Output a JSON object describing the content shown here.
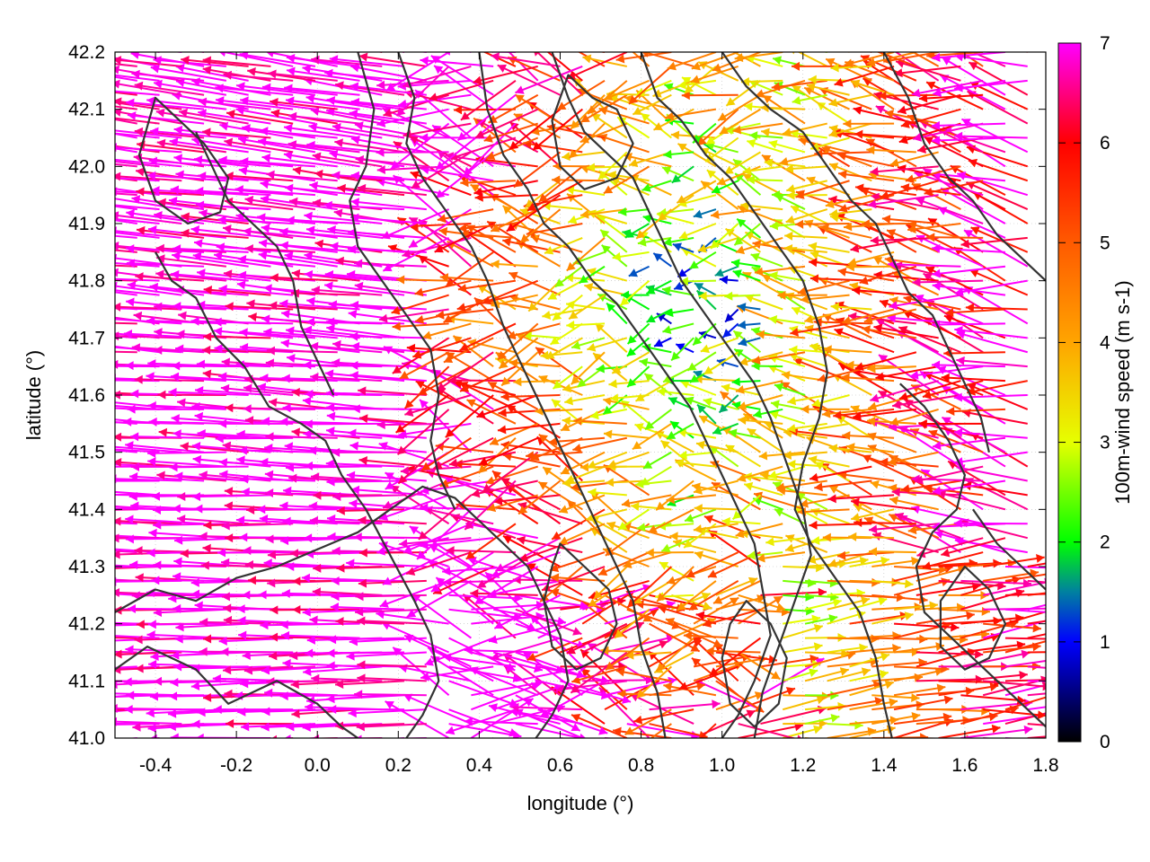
{
  "chart_data": {
    "type": "vector-field",
    "title": "",
    "xlabel": "longitude (°)",
    "ylabel": "latitude (°)",
    "colorbar_label": "100m-wind speed (m s-1)",
    "xlim": [
      -0.5,
      1.8
    ],
    "ylim": [
      41.0,
      42.2
    ],
    "x_ticks": [
      -0.4,
      -0.2,
      0.0,
      0.2,
      0.4,
      0.6,
      0.8,
      1.0,
      1.2,
      1.4,
      1.6,
      1.8
    ],
    "x_tick_labels": [
      "-0.4",
      "-0.2",
      "0.0",
      "0.2",
      "0.4",
      "0.6",
      "0.8",
      "1.0",
      "1.2",
      "1.4",
      "1.6",
      "1.8"
    ],
    "y_ticks": [
      41.0,
      41.1,
      41.2,
      41.3,
      41.4,
      41.5,
      41.6,
      41.7,
      41.8,
      41.9,
      42.0,
      42.1,
      42.2
    ],
    "y_tick_labels": [
      "41.0",
      "41.1",
      "41.2",
      "41.3",
      "41.4",
      "41.5",
      "41.6",
      "41.7",
      "41.8",
      "41.9",
      "42.0",
      "42.1",
      "42.2"
    ],
    "colorbar_range": [
      0,
      7
    ],
    "colorbar_ticks": [
      0,
      1,
      2,
      3,
      4,
      5,
      6,
      7
    ],
    "colorbar_tick_labels": [
      "0",
      "1",
      "2",
      "3",
      "4",
      "5",
      "6",
      "7"
    ],
    "colormap": [
      {
        "value": 0,
        "color": "#000000"
      },
      {
        "value": 1,
        "color": "#0000ff"
      },
      {
        "value": 1.5,
        "color": "#0080a0"
      },
      {
        "value": 2,
        "color": "#00ff00"
      },
      {
        "value": 3,
        "color": "#e6ff00"
      },
      {
        "value": 4,
        "color": "#ffa500"
      },
      {
        "value": 5,
        "color": "#ff5a00"
      },
      {
        "value": 6,
        "color": "#ff0000"
      },
      {
        "value": 7,
        "color": "#ff00ff"
      }
    ],
    "grid": true,
    "legend": "colorbar-right",
    "contour_color": "#333333",
    "contours": [
      [
        [
          -0.4,
          41.85
        ],
        [
          -0.36,
          41.8
        ],
        [
          -0.3,
          41.77
        ],
        [
          -0.25,
          41.7
        ],
        [
          -0.18,
          41.65
        ],
        [
          -0.12,
          41.58
        ],
        [
          -0.04,
          41.55
        ],
        [
          0.02,
          41.52
        ],
        [
          0.06,
          41.46
        ],
        [
          0.12,
          41.4
        ],
        [
          0.18,
          41.32
        ],
        [
          0.24,
          41.24
        ],
        [
          0.28,
          41.18
        ],
        [
          0.3,
          41.1
        ],
        [
          0.26,
          41.04
        ],
        [
          0.22,
          41.0
        ]
      ],
      [
        [
          -0.5,
          41.22
        ],
        [
          -0.4,
          41.26
        ],
        [
          -0.3,
          41.24
        ],
        [
          -0.2,
          41.28
        ],
        [
          -0.1,
          41.3
        ],
        [
          0.0,
          41.33
        ],
        [
          0.1,
          41.36
        ],
        [
          0.18,
          41.4
        ],
        [
          0.26,
          41.44
        ],
        [
          0.34,
          41.42
        ],
        [
          0.4,
          41.38
        ],
        [
          0.46,
          41.34
        ],
        [
          0.52,
          41.3
        ],
        [
          0.56,
          41.24
        ],
        [
          0.6,
          41.18
        ],
        [
          0.62,
          41.1
        ],
        [
          0.58,
          41.04
        ],
        [
          0.54,
          41.0
        ]
      ],
      [
        [
          -0.5,
          41.12
        ],
        [
          -0.42,
          41.16
        ],
        [
          -0.3,
          41.12
        ],
        [
          -0.22,
          41.06
        ],
        [
          -0.1,
          41.1
        ],
        [
          0.0,
          41.06
        ],
        [
          0.06,
          41.02
        ],
        [
          0.1,
          41.0
        ]
      ],
      [
        [
          0.1,
          42.2
        ],
        [
          0.14,
          42.1
        ],
        [
          0.12,
          42.0
        ],
        [
          0.08,
          41.94
        ],
        [
          0.1,
          41.86
        ],
        [
          0.16,
          41.8
        ],
        [
          0.22,
          41.74
        ],
        [
          0.28,
          41.68
        ],
        [
          0.3,
          41.6
        ],
        [
          0.28,
          41.52
        ],
        [
          0.3,
          41.46
        ],
        [
          0.34,
          41.4
        ]
      ],
      [
        [
          0.2,
          42.2
        ],
        [
          0.24,
          42.12
        ],
        [
          0.22,
          42.04
        ],
        [
          0.26,
          41.98
        ],
        [
          0.32,
          41.92
        ],
        [
          0.38,
          41.86
        ],
        [
          0.42,
          41.8
        ],
        [
          0.46,
          41.72
        ],
        [
          0.5,
          41.66
        ],
        [
          0.54,
          41.6
        ],
        [
          0.58,
          41.54
        ],
        [
          0.62,
          41.48
        ],
        [
          0.66,
          41.42
        ],
        [
          0.7,
          41.36
        ],
        [
          0.74,
          41.3
        ],
        [
          0.78,
          41.24
        ],
        [
          0.8,
          41.16
        ],
        [
          0.84,
          41.08
        ],
        [
          0.86,
          41.0
        ]
      ],
      [
        [
          0.4,
          42.2
        ],
        [
          0.42,
          42.1
        ],
        [
          0.46,
          42.02
        ],
        [
          0.52,
          41.96
        ],
        [
          0.56,
          41.9
        ],
        [
          0.62,
          41.86
        ],
        [
          0.68,
          41.8
        ],
        [
          0.74,
          41.76
        ],
        [
          0.8,
          41.7
        ],
        [
          0.86,
          41.64
        ],
        [
          0.92,
          41.58
        ],
        [
          0.96,
          41.52
        ],
        [
          1.0,
          41.46
        ],
        [
          1.04,
          41.4
        ],
        [
          1.08,
          41.34
        ],
        [
          1.1,
          41.26
        ],
        [
          1.12,
          41.18
        ],
        [
          1.08,
          41.1
        ],
        [
          1.04,
          41.04
        ],
        [
          1.0,
          41.0
        ]
      ],
      [
        [
          0.58,
          42.2
        ],
        [
          0.62,
          42.12
        ],
        [
          0.66,
          42.06
        ],
        [
          0.72,
          42.02
        ],
        [
          0.78,
          41.98
        ],
        [
          0.82,
          41.92
        ],
        [
          0.86,
          41.86
        ],
        [
          0.9,
          41.8
        ],
        [
          0.96,
          41.74
        ],
        [
          1.02,
          41.68
        ],
        [
          1.08,
          41.62
        ],
        [
          1.12,
          41.56
        ],
        [
          1.16,
          41.48
        ],
        [
          1.2,
          41.4
        ],
        [
          1.22,
          41.32
        ],
        [
          1.18,
          41.24
        ],
        [
          1.14,
          41.16
        ],
        [
          1.1,
          41.08
        ],
        [
          1.08,
          41.0
        ]
      ],
      [
        [
          0.8,
          42.2
        ],
        [
          0.84,
          42.12
        ],
        [
          0.9,
          42.08
        ],
        [
          0.96,
          42.02
        ],
        [
          1.02,
          41.98
        ],
        [
          1.08,
          41.92
        ],
        [
          1.14,
          41.86
        ],
        [
          1.2,
          41.8
        ],
        [
          1.24,
          41.72
        ],
        [
          1.26,
          41.64
        ],
        [
          1.24,
          41.56
        ],
        [
          1.2,
          41.48
        ],
        [
          1.18,
          41.4
        ],
        [
          1.22,
          41.34
        ],
        [
          1.28,
          41.28
        ],
        [
          1.34,
          41.22
        ],
        [
          1.38,
          41.14
        ],
        [
          1.4,
          41.06
        ],
        [
          1.42,
          41.0
        ]
      ],
      [
        [
          1.0,
          42.2
        ],
        [
          1.06,
          42.14
        ],
        [
          1.12,
          42.1
        ],
        [
          1.2,
          42.06
        ],
        [
          1.26,
          42.0
        ],
        [
          1.32,
          41.94
        ],
        [
          1.38,
          41.9
        ],
        [
          1.42,
          41.84
        ],
        [
          1.46,
          41.78
        ],
        [
          1.52,
          41.74
        ],
        [
          1.56,
          41.68
        ],
        [
          1.6,
          41.62
        ],
        [
          1.64,
          41.56
        ],
        [
          1.66,
          41.5
        ]
      ],
      [
        [
          1.4,
          42.2
        ],
        [
          1.46,
          42.12
        ],
        [
          1.5,
          42.04
        ],
        [
          1.56,
          41.98
        ],
        [
          1.62,
          41.94
        ],
        [
          1.68,
          41.88
        ],
        [
          1.74,
          41.84
        ],
        [
          1.8,
          41.8
        ]
      ],
      [
        [
          1.44,
          41.62
        ],
        [
          1.5,
          41.58
        ],
        [
          1.56,
          41.52
        ],
        [
          1.6,
          41.46
        ],
        [
          1.58,
          41.4
        ],
        [
          1.52,
          41.36
        ],
        [
          1.48,
          41.3
        ],
        [
          1.5,
          41.22
        ],
        [
          1.56,
          41.18
        ],
        [
          1.62,
          41.14
        ],
        [
          1.68,
          41.1
        ],
        [
          1.74,
          41.06
        ],
        [
          1.8,
          41.02
        ]
      ],
      [
        [
          -0.3,
          42.06
        ],
        [
          -0.26,
          42.0
        ],
        [
          -0.22,
          41.94
        ],
        [
          -0.16,
          41.9
        ],
        [
          -0.1,
          41.86
        ],
        [
          -0.06,
          41.8
        ],
        [
          -0.04,
          41.72
        ],
        [
          0.0,
          41.66
        ],
        [
          0.04,
          41.6
        ]
      ],
      [
        [
          1.62,
          41.4
        ],
        [
          1.68,
          41.34
        ],
        [
          1.74,
          41.3
        ],
        [
          1.8,
          41.26
        ]
      ]
    ],
    "closed_contours": [
      [
        [
          0.6,
          41.34
        ],
        [
          0.66,
          41.3
        ],
        [
          0.72,
          41.26
        ],
        [
          0.74,
          41.2
        ],
        [
          0.7,
          41.14
        ],
        [
          0.64,
          41.12
        ],
        [
          0.58,
          41.16
        ],
        [
          0.56,
          41.24
        ],
        [
          0.58,
          41.3
        ],
        [
          0.6,
          41.34
        ]
      ],
      [
        [
          0.62,
          42.16
        ],
        [
          0.68,
          42.12
        ],
        [
          0.74,
          42.1
        ],
        [
          0.78,
          42.04
        ],
        [
          0.74,
          41.98
        ],
        [
          0.66,
          41.96
        ],
        [
          0.6,
          42.0
        ],
        [
          0.58,
          42.08
        ],
        [
          0.62,
          42.16
        ]
      ],
      [
        [
          1.06,
          41.24
        ],
        [
          1.12,
          41.2
        ],
        [
          1.16,
          41.14
        ],
        [
          1.14,
          41.06
        ],
        [
          1.08,
          41.02
        ],
        [
          1.02,
          41.06
        ],
        [
          1.0,
          41.14
        ],
        [
          1.02,
          41.2
        ],
        [
          1.06,
          41.24
        ]
      ],
      [
        [
          -0.4,
          42.12
        ],
        [
          -0.34,
          42.08
        ],
        [
          -0.28,
          42.04
        ],
        [
          -0.22,
          41.98
        ],
        [
          -0.24,
          41.92
        ],
        [
          -0.32,
          41.9
        ],
        [
          -0.4,
          41.94
        ],
        [
          -0.44,
          42.02
        ],
        [
          -0.4,
          42.12
        ]
      ],
      [
        [
          1.6,
          41.3
        ],
        [
          1.66,
          41.26
        ],
        [
          1.7,
          41.2
        ],
        [
          1.66,
          41.14
        ],
        [
          1.6,
          41.12
        ],
        [
          1.54,
          41.16
        ],
        [
          1.54,
          41.24
        ],
        [
          1.6,
          41.3
        ]
      ]
    ],
    "vectors": [
      {
        "region": "west",
        "lon_range": [
          -0.5,
          0.3
        ],
        "lat_range": [
          41.0,
          42.2
        ],
        "direction": "westward",
        "typical_speed": 7
      },
      {
        "region": "central",
        "lon_range": [
          0.3,
          1.1
        ],
        "lat_range": [
          41.0,
          42.2
        ],
        "direction": "mixed",
        "typical_speed": 4
      },
      {
        "region": "east",
        "lon_range": [
          1.1,
          1.8
        ],
        "lat_range": [
          41.0,
          42.2
        ],
        "direction": "mixed",
        "typical_speed": 5
      }
    ]
  }
}
